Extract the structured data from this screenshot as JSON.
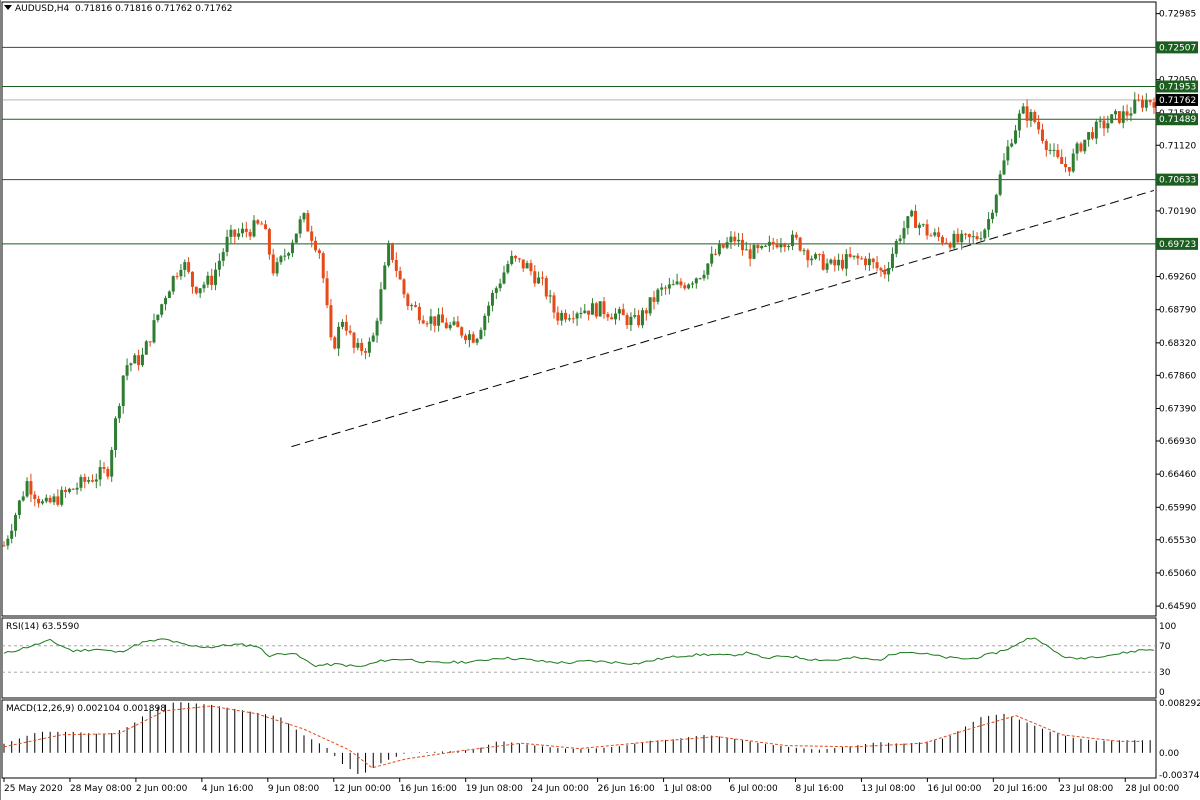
{
  "header": {
    "symbol": "AUDUSD,H4",
    "ohlc": "0.71816 0.71816 0.71762 0.71762"
  },
  "colors": {
    "bull": "#2e7d32",
    "bear": "#e64a19",
    "level": "#1b5e20",
    "price": "#000000",
    "trend": "#000000",
    "rsi": "#1a7a1a",
    "hist": "#000000",
    "signal": "#e64a19"
  },
  "chart_data": [
    {
      "type": "candlestick",
      "title": "AUDUSD,H4",
      "ylim": [
        0.6445,
        0.7315
      ],
      "y_ticks": [
        "0.72985",
        "0.72507",
        "0.72050",
        "0.71953",
        "0.71580",
        "0.71489",
        "0.71120",
        "0.70633",
        "0.70190",
        "0.69723",
        "0.69260",
        "0.68790",
        "0.68320",
        "0.67860",
        "0.67390",
        "0.66930",
        "0.66460",
        "0.65990",
        "0.65530",
        "0.65060",
        "0.64590"
      ],
      "x_ticks": [
        "25 May 2020",
        "28 May 08:00",
        "2 Jun 00:00",
        "4 Jun 16:00",
        "9 Jun 08:00",
        "12 Jun 00:00",
        "16 Jun 16:00",
        "19 Jun 08:00",
        "24 Jun 00:00",
        "26 Jun 16:00",
        "1 Jul 08:00",
        "6 Jul 00:00",
        "8 Jul 16:00",
        "13 Jul 08:00",
        "16 Jul 00:00",
        "20 Jul 16:00",
        "23 Jul 08:00",
        "28 Jul 00:00"
      ],
      "levels": [
        {
          "label": "0.72507",
          "value": 0.72507
        },
        {
          "label": "0.71953",
          "value": 0.71953
        },
        {
          "label": "0.71489",
          "value": 0.71489
        },
        {
          "label": "0.70633",
          "value": 0.70633
        },
        {
          "label": "0.69723",
          "value": 0.69723
        }
      ],
      "current_price": {
        "label": "0.71762",
        "value": 0.71762
      },
      "trendline": [
        [
          0.25,
          0.6685
        ],
        [
          1.0,
          0.7048
        ]
      ],
      "close_path": [
        [
          0.0,
          0.6545
        ],
        [
          0.02,
          0.6635
        ],
        [
          0.035,
          0.66
        ],
        [
          0.045,
          0.661
        ],
        [
          0.06,
          0.6625
        ],
        [
          0.075,
          0.664
        ],
        [
          0.09,
          0.665
        ],
        [
          0.105,
          0.68
        ],
        [
          0.12,
          0.681
        ],
        [
          0.14,
          0.69
        ],
        [
          0.155,
          0.695
        ],
        [
          0.165,
          0.691
        ],
        [
          0.18,
          0.692
        ],
        [
          0.195,
          0.698
        ],
        [
          0.21,
          0.699
        ],
        [
          0.225,
          0.7
        ],
        [
          0.235,
          0.693
        ],
        [
          0.245,
          0.696
        ],
        [
          0.26,
          0.701
        ],
        [
          0.275,
          0.696
        ],
        [
          0.285,
          0.682
        ],
        [
          0.295,
          0.687
        ],
        [
          0.305,
          0.682
        ],
        [
          0.32,
          0.683
        ],
        [
          0.335,
          0.697
        ],
        [
          0.35,
          0.689
        ],
        [
          0.365,
          0.687
        ],
        [
          0.38,
          0.686
        ],
        [
          0.395,
          0.685
        ],
        [
          0.41,
          0.684
        ],
        [
          0.425,
          0.69
        ],
        [
          0.44,
          0.695
        ],
        [
          0.455,
          0.694
        ],
        [
          0.47,
          0.691
        ],
        [
          0.48,
          0.687
        ],
        [
          0.5,
          0.688
        ],
        [
          0.52,
          0.688
        ],
        [
          0.535,
          0.687
        ],
        [
          0.55,
          0.686
        ],
        [
          0.57,
          0.6905
        ],
        [
          0.59,
          0.6915
        ],
        [
          0.605,
          0.693
        ],
        [
          0.62,
          0.696
        ],
        [
          0.635,
          0.698
        ],
        [
          0.645,
          0.696
        ],
        [
          0.66,
          0.696
        ],
        [
          0.675,
          0.698
        ],
        [
          0.69,
          0.6975
        ],
        [
          0.705,
          0.695
        ],
        [
          0.72,
          0.694
        ],
        [
          0.735,
          0.695
        ],
        [
          0.75,
          0.695
        ],
        [
          0.765,
          0.693
        ],
        [
          0.78,
          0.699
        ],
        [
          0.79,
          0.701
        ],
        [
          0.805,
          0.6985
        ],
        [
          0.815,
          0.698
        ],
        [
          0.83,
          0.6975
        ],
        [
          0.845,
          0.698
        ],
        [
          0.855,
          0.7
        ],
        [
          0.865,
          0.706
        ],
        [
          0.875,
          0.712
        ],
        [
          0.885,
          0.716
        ],
        [
          0.895,
          0.715
        ],
        [
          0.905,
          0.712
        ],
        [
          0.915,
          0.709
        ],
        [
          0.925,
          0.708
        ],
        [
          0.935,
          0.711
        ],
        [
          0.945,
          0.713
        ],
        [
          0.955,
          0.714
        ],
        [
          0.965,
          0.715
        ],
        [
          0.975,
          0.7155
        ],
        [
          0.985,
          0.717
        ],
        [
          0.995,
          0.7176
        ]
      ]
    },
    {
      "type": "line",
      "title": "RSI(14) 63.5590",
      "ylim": [
        0,
        100
      ],
      "y_ticks": [
        "100",
        "70",
        "30",
        "0"
      ],
      "levels": [
        70,
        30
      ],
      "rsi_path": [
        [
          0.0,
          58
        ],
        [
          0.02,
          68
        ],
        [
          0.04,
          78
        ],
        [
          0.06,
          62
        ],
        [
          0.08,
          65
        ],
        [
          0.1,
          60
        ],
        [
          0.12,
          75
        ],
        [
          0.14,
          80
        ],
        [
          0.16,
          70
        ],
        [
          0.18,
          68
        ],
        [
          0.2,
          72
        ],
        [
          0.22,
          70
        ],
        [
          0.23,
          55
        ],
        [
          0.25,
          60
        ],
        [
          0.27,
          40
        ],
        [
          0.29,
          42
        ],
        [
          0.31,
          38
        ],
        [
          0.33,
          48
        ],
        [
          0.35,
          50
        ],
        [
          0.37,
          44
        ],
        [
          0.39,
          45
        ],
        [
          0.41,
          46
        ],
        [
          0.43,
          52
        ],
        [
          0.45,
          50
        ],
        [
          0.47,
          46
        ],
        [
          0.49,
          44
        ],
        [
          0.51,
          47
        ],
        [
          0.53,
          45
        ],
        [
          0.55,
          43
        ],
        [
          0.57,
          50
        ],
        [
          0.59,
          55
        ],
        [
          0.61,
          57
        ],
        [
          0.63,
          55
        ],
        [
          0.65,
          60
        ],
        [
          0.66,
          50
        ],
        [
          0.68,
          55
        ],
        [
          0.7,
          50
        ],
        [
          0.72,
          48
        ],
        [
          0.74,
          52
        ],
        [
          0.76,
          48
        ],
        [
          0.78,
          62
        ],
        [
          0.8,
          58
        ],
        [
          0.82,
          52
        ],
        [
          0.84,
          50
        ],
        [
          0.86,
          58
        ],
        [
          0.88,
          70
        ],
        [
          0.89,
          82
        ],
        [
          0.9,
          80
        ],
        [
          0.91,
          65
        ],
        [
          0.92,
          55
        ],
        [
          0.93,
          50
        ],
        [
          0.95,
          54
        ],
        [
          0.97,
          58
        ],
        [
          0.99,
          64
        ]
      ]
    },
    {
      "type": "bar",
      "title": "MACD(12,26,9) 0.002104 0.001898",
      "ylim": [
        -0.0042,
        0.0088
      ],
      "y_ticks": [
        "0.008292",
        "0.00",
        "-0.00374"
      ],
      "macd_path": [
        [
          0.0,
          0.0015
        ],
        [
          0.03,
          0.0035
        ],
        [
          0.06,
          0.0035
        ],
        [
          0.09,
          0.003
        ],
        [
          0.11,
          0.0045
        ],
        [
          0.13,
          0.0075
        ],
        [
          0.15,
          0.0085
        ],
        [
          0.18,
          0.008
        ],
        [
          0.21,
          0.007
        ],
        [
          0.24,
          0.006
        ],
        [
          0.26,
          0.003
        ],
        [
          0.28,
          0.001
        ],
        [
          0.295,
          -0.002
        ],
        [
          0.31,
          -0.0038
        ],
        [
          0.33,
          -0.0015
        ],
        [
          0.35,
          0.0
        ],
        [
          0.38,
          0.0002
        ],
        [
          0.41,
          0.0005
        ],
        [
          0.43,
          0.002
        ],
        [
          0.45,
          0.0015
        ],
        [
          0.48,
          0.0008
        ],
        [
          0.5,
          0.0006
        ],
        [
          0.52,
          0.0008
        ],
        [
          0.54,
          0.0012
        ],
        [
          0.56,
          0.002
        ],
        [
          0.58,
          0.0022
        ],
        [
          0.61,
          0.003
        ],
        [
          0.63,
          0.0025
        ],
        [
          0.66,
          0.0015
        ],
        [
          0.69,
          0.0008
        ],
        [
          0.71,
          0.0005
        ],
        [
          0.74,
          0.0012
        ],
        [
          0.76,
          0.0018
        ],
        [
          0.78,
          0.0015
        ],
        [
          0.8,
          0.0018
        ],
        [
          0.82,
          0.0025
        ],
        [
          0.85,
          0.006
        ],
        [
          0.87,
          0.0065
        ],
        [
          0.89,
          0.005
        ],
        [
          0.91,
          0.0035
        ],
        [
          0.93,
          0.0025
        ],
        [
          0.95,
          0.002
        ],
        [
          0.97,
          0.0021
        ],
        [
          0.99,
          0.0021
        ]
      ],
      "signal_path": [
        [
          0.0,
          0.001
        ],
        [
          0.05,
          0.003
        ],
        [
          0.1,
          0.0032
        ],
        [
          0.14,
          0.007
        ],
        [
          0.18,
          0.0078
        ],
        [
          0.22,
          0.0065
        ],
        [
          0.26,
          0.004
        ],
        [
          0.3,
          0.0005
        ],
        [
          0.32,
          -0.0025
        ],
        [
          0.35,
          -0.001
        ],
        [
          0.4,
          0.0004
        ],
        [
          0.45,
          0.0016
        ],
        [
          0.5,
          0.0007
        ],
        [
          0.56,
          0.0018
        ],
        [
          0.62,
          0.0027
        ],
        [
          0.68,
          0.0012
        ],
        [
          0.74,
          0.001
        ],
        [
          0.8,
          0.0016
        ],
        [
          0.84,
          0.004
        ],
        [
          0.88,
          0.0062
        ],
        [
          0.92,
          0.003
        ],
        [
          0.97,
          0.0019
        ],
        [
          0.99,
          0.0019
        ]
      ]
    }
  ]
}
